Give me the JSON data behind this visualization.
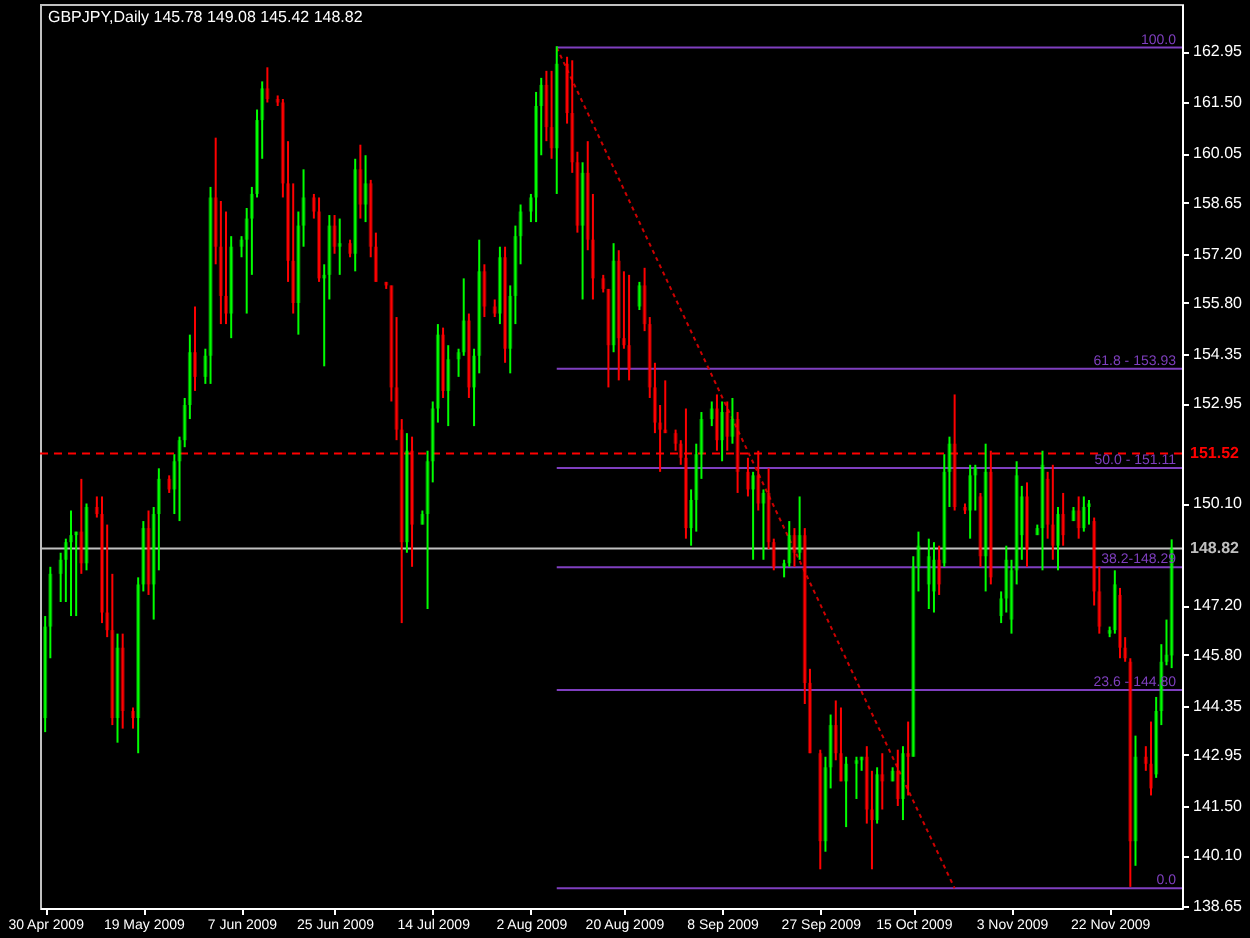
{
  "chart_data": {
    "type": "candlestick",
    "title": "GBPJPY,Daily  145.78 149.08 145.42 148.82",
    "x": [
      "2009-04-30",
      "2009-05-01",
      "2009-05-03",
      "2009-05-04",
      "2009-05-05",
      "2009-05-06",
      "2009-05-07",
      "2009-05-08",
      "2009-05-10",
      "2009-05-11",
      "2009-05-12",
      "2009-05-13",
      "2009-05-14",
      "2009-05-15",
      "2009-05-17",
      "2009-05-18",
      "2009-05-19",
      "2009-05-20",
      "2009-05-21",
      "2009-05-22",
      "2009-05-24",
      "2009-05-25",
      "2009-05-26",
      "2009-05-27",
      "2009-05-28",
      "2009-05-29",
      "2009-05-31",
      "2009-06-01",
      "2009-06-02",
      "2009-06-03",
      "2009-06-04",
      "2009-06-05",
      "2009-06-07",
      "2009-06-08",
      "2009-06-09",
      "2009-06-10",
      "2009-06-11",
      "2009-06-12",
      "2009-06-14",
      "2009-06-15",
      "2009-06-16",
      "2009-06-17",
      "2009-06-18",
      "2009-06-19",
      "2009-06-21",
      "2009-06-22",
      "2009-06-23",
      "2009-06-24",
      "2009-06-25",
      "2009-06-26",
      "2009-06-28",
      "2009-06-29",
      "2009-06-30",
      "2009-07-01",
      "2009-07-02",
      "2009-07-03",
      "2009-07-05",
      "2009-07-06",
      "2009-07-07",
      "2009-07-08",
      "2009-07-09",
      "2009-07-10",
      "2009-07-12",
      "2009-07-13",
      "2009-07-14",
      "2009-07-15",
      "2009-07-16",
      "2009-07-17",
      "2009-07-19",
      "2009-07-20",
      "2009-07-21",
      "2009-07-22",
      "2009-07-23",
      "2009-07-24",
      "2009-07-26",
      "2009-07-27",
      "2009-07-28",
      "2009-07-29",
      "2009-07-30",
      "2009-07-31",
      "2009-08-02",
      "2009-08-03",
      "2009-08-04",
      "2009-08-05",
      "2009-08-06",
      "2009-08-07",
      "2009-08-09",
      "2009-08-10",
      "2009-08-11",
      "2009-08-12",
      "2009-08-13",
      "2009-08-14",
      "2009-08-16",
      "2009-08-17",
      "2009-08-18",
      "2009-08-19",
      "2009-08-20",
      "2009-08-21",
      "2009-08-23",
      "2009-08-24",
      "2009-08-25",
      "2009-08-26",
      "2009-08-27",
      "2009-08-28",
      "2009-08-30",
      "2009-08-31",
      "2009-09-01",
      "2009-09-02",
      "2009-09-03",
      "2009-09-04",
      "2009-09-06",
      "2009-09-07",
      "2009-09-08",
      "2009-09-09",
      "2009-09-10",
      "2009-09-11",
      "2009-09-13",
      "2009-09-14",
      "2009-09-15",
      "2009-09-16",
      "2009-09-17",
      "2009-09-18",
      "2009-09-20",
      "2009-09-21",
      "2009-09-22",
      "2009-09-23",
      "2009-09-24",
      "2009-09-25",
      "2009-09-27",
      "2009-09-28",
      "2009-09-29",
      "2009-09-30",
      "2009-10-01",
      "2009-10-02",
      "2009-10-04",
      "2009-10-05",
      "2009-10-06",
      "2009-10-07",
      "2009-10-08",
      "2009-10-09",
      "2009-10-11",
      "2009-10-12",
      "2009-10-13",
      "2009-10-14",
      "2009-10-15",
      "2009-10-16",
      "2009-10-18",
      "2009-10-19",
      "2009-10-20",
      "2009-10-21",
      "2009-10-22",
      "2009-10-23",
      "2009-10-25",
      "2009-10-26",
      "2009-10-27",
      "2009-10-28",
      "2009-10-29",
      "2009-10-30",
      "2009-11-01",
      "2009-11-02",
      "2009-11-03",
      "2009-11-04",
      "2009-11-05",
      "2009-11-06",
      "2009-11-08",
      "2009-11-09",
      "2009-11-10",
      "2009-11-11",
      "2009-11-12",
      "2009-11-13",
      "2009-11-15",
      "2009-11-16",
      "2009-11-17",
      "2009-11-18",
      "2009-11-19",
      "2009-11-20",
      "2009-11-22",
      "2009-11-23",
      "2009-11-24",
      "2009-11-25",
      "2009-11-26",
      "2009-11-27",
      "2009-11-29",
      "2009-11-30",
      "2009-12-01",
      "2009-12-02",
      "2009-12-03",
      "2009-12-04"
    ],
    "ohlc": [
      [
        144.0,
        146.9,
        143.6,
        146.6
      ],
      [
        146.6,
        148.3,
        145.7,
        148.1
      ],
      [
        148.1,
        148.7,
        147.3,
        148.5
      ],
      [
        148.5,
        149.1,
        147.3,
        149.0
      ],
      [
        149.0,
        149.9,
        146.9,
        149.2
      ],
      [
        149.2,
        149.3,
        146.9,
        149.3
      ],
      [
        149.3,
        150.8,
        148.1,
        148.4
      ],
      [
        148.4,
        150.1,
        148.2,
        150.0
      ],
      [
        150.0,
        150.3,
        149.7,
        149.8
      ],
      [
        149.8,
        150.3,
        146.7,
        147.0
      ],
      [
        147.0,
        149.5,
        146.3,
        146.5
      ],
      [
        146.5,
        148.1,
        143.8,
        144.0
      ],
      [
        144.0,
        146.4,
        143.3,
        146.0
      ],
      [
        146.0,
        146.4,
        143.7,
        144.2
      ],
      [
        144.2,
        144.3,
        143.7,
        144.0
      ],
      [
        144.0,
        148.0,
        143.0,
        147.8
      ],
      [
        147.8,
        149.6,
        147.6,
        149.4
      ],
      [
        149.4,
        149.9,
        147.5,
        147.8
      ],
      [
        147.8,
        150.0,
        146.8,
        149.8
      ],
      [
        149.8,
        151.1,
        148.2,
        150.8
      ],
      [
        150.8,
        150.9,
        150.4,
        150.5
      ],
      [
        150.5,
        151.5,
        149.8,
        151.3
      ],
      [
        151.3,
        152.0,
        149.6,
        151.9
      ],
      [
        151.9,
        153.1,
        151.7,
        152.9
      ],
      [
        152.9,
        154.9,
        152.5,
        154.4
      ],
      [
        154.4,
        155.7,
        153.3,
        153.7
      ],
      [
        153.7,
        154.5,
        153.5,
        154.3
      ],
      [
        154.3,
        159.1,
        153.5,
        158.8
      ],
      [
        158.8,
        160.5,
        156.9,
        157.4
      ],
      [
        157.4,
        158.7,
        155.2,
        156.0
      ],
      [
        156.0,
        158.4,
        155.2,
        155.5
      ],
      [
        155.5,
        157.7,
        154.8,
        157.4
      ],
      [
        157.4,
        157.7,
        157.1,
        157.6
      ],
      [
        157.6,
        158.5,
        155.5,
        158.2
      ],
      [
        158.2,
        159.1,
        156.6,
        158.9
      ],
      [
        158.9,
        161.3,
        158.8,
        161.0
      ],
      [
        161.0,
        162.1,
        159.9,
        161.9
      ],
      [
        161.9,
        162.5,
        161.5,
        161.6
      ],
      [
        161.6,
        161.7,
        161.4,
        161.5
      ],
      [
        161.5,
        161.6,
        158.8,
        159.2
      ],
      [
        159.2,
        160.4,
        156.4,
        157.0
      ],
      [
        157.0,
        159.2,
        155.5,
        155.8
      ],
      [
        155.8,
        158.4,
        154.9,
        158.0
      ],
      [
        158.0,
        159.6,
        157.4,
        158.8
      ],
      [
        158.8,
        158.9,
        158.2,
        158.4
      ],
      [
        158.4,
        158.8,
        156.4,
        156.5
      ],
      [
        156.5,
        156.9,
        154.0,
        156.6
      ],
      [
        156.6,
        158.3,
        155.9,
        158.0
      ],
      [
        158.0,
        158.3,
        157.2,
        157.4
      ],
      [
        157.4,
        158.2,
        156.6,
        157.5
      ],
      [
        157.5,
        157.6,
        157.1,
        157.2
      ],
      [
        157.2,
        159.9,
        156.7,
        159.6
      ],
      [
        159.6,
        160.3,
        158.2,
        158.6
      ],
      [
        158.6,
        160.0,
        158.1,
        159.2
      ],
      [
        159.2,
        159.3,
        157.1,
        157.4
      ],
      [
        157.4,
        157.8,
        156.4,
        156.4
      ],
      [
        156.4,
        156.4,
        156.2,
        156.3
      ],
      [
        156.3,
        156.3,
        153.0,
        153.4
      ],
      [
        153.4,
        155.4,
        151.9,
        152.2
      ],
      [
        152.2,
        152.5,
        146.7,
        149.0
      ],
      [
        149.0,
        152.1,
        148.7,
        151.6
      ],
      [
        151.6,
        152.0,
        148.3,
        149.5
      ],
      [
        149.5,
        149.9,
        149.5,
        149.8
      ],
      [
        149.8,
        151.6,
        147.1,
        151.3
      ],
      [
        151.3,
        153.0,
        150.7,
        152.8
      ],
      [
        152.8,
        155.2,
        152.4,
        154.9
      ],
      [
        154.9,
        155.1,
        153.1,
        153.3
      ],
      [
        153.3,
        154.6,
        152.3,
        154.2
      ],
      [
        154.2,
        154.5,
        153.7,
        154.4
      ],
      [
        154.4,
        156.5,
        154.3,
        155.3
      ],
      [
        155.3,
        155.5,
        153.1,
        153.4
      ],
      [
        153.4,
        154.5,
        152.3,
        154.3
      ],
      [
        154.3,
        157.6,
        153.8,
        156.7
      ],
      [
        156.7,
        156.9,
        155.4,
        155.7
      ],
      [
        155.7,
        155.9,
        155.4,
        155.5
      ],
      [
        155.5,
        157.4,
        155.2,
        157.1
      ],
      [
        157.1,
        157.4,
        154.1,
        154.5
      ],
      [
        154.5,
        156.3,
        153.8,
        156.0
      ],
      [
        156.0,
        158.0,
        155.2,
        157.7
      ],
      [
        157.7,
        158.6,
        156.9,
        158.4
      ],
      [
        158.4,
        158.9,
        158.1,
        158.8
      ],
      [
        158.8,
        161.8,
        158.1,
        161.4
      ],
      [
        161.4,
        162.2,
        160.0,
        162.0
      ],
      [
        162.0,
        162.4,
        160.4,
        160.8
      ],
      [
        160.8,
        162.4,
        159.9,
        160.2
      ],
      [
        160.2,
        163.1,
        158.9,
        162.6
      ],
      [
        162.6,
        162.8,
        160.9,
        161.2
      ],
      [
        161.2,
        162.7,
        159.5,
        159.8
      ],
      [
        159.8,
        160.1,
        157.8,
        158.0
      ],
      [
        158.0,
        159.8,
        155.9,
        159.5
      ],
      [
        159.5,
        160.4,
        157.3,
        157.6
      ],
      [
        157.6,
        158.9,
        155.9,
        156.5
      ],
      [
        156.5,
        156.6,
        156.1,
        156.2
      ],
      [
        156.2,
        156.2,
        153.4,
        154.6
      ],
      [
        154.6,
        157.5,
        154.4,
        157.0
      ],
      [
        157.0,
        157.3,
        153.6,
        154.8
      ],
      [
        154.8,
        156.7,
        154.5,
        154.6
      ],
      [
        154.6,
        156.6,
        153.6,
        153.9
      ],
      [
        155.7,
        156.4,
        155.6,
        156.3
      ],
      [
        156.3,
        156.8,
        155.0,
        155.2
      ],
      [
        155.2,
        155.4,
        153.1,
        153.4
      ],
      [
        153.4,
        154.1,
        152.1,
        152.4
      ],
      [
        152.4,
        152.9,
        151.0,
        152.2
      ],
      [
        152.2,
        153.6,
        152.1,
        152.1
      ],
      [
        152.1,
        152.2,
        151.6,
        151.8
      ],
      [
        151.8,
        151.9,
        151.2,
        151.4
      ],
      [
        151.4,
        152.8,
        149.1,
        149.4
      ],
      [
        149.4,
        150.5,
        148.9,
        150.2
      ],
      [
        150.2,
        151.8,
        149.3,
        151.5
      ],
      [
        151.5,
        152.7,
        150.8,
        152.5
      ],
      [
        152.5,
        153.0,
        152.3,
        152.8
      ],
      [
        152.8,
        153.2,
        151.6,
        151.9
      ],
      [
        151.9,
        153.0,
        151.3,
        152.7
      ],
      [
        152.7,
        153.0,
        151.6,
        152.0
      ],
      [
        152.0,
        153.1,
        151.8,
        152.5
      ],
      [
        152.5,
        152.7,
        150.4,
        151.0
      ],
      [
        151.0,
        151.4,
        150.3,
        150.5
      ],
      [
        150.5,
        151.0,
        148.5,
        150.9
      ],
      [
        150.9,
        151.6,
        149.9,
        150.1
      ],
      [
        150.1,
        150.5,
        148.5,
        150.4
      ],
      [
        150.4,
        151.1,
        148.8,
        149.0
      ],
      [
        149.0,
        149.1,
        148.2,
        148.3
      ],
      [
        148.3,
        148.5,
        148.0,
        148.4
      ],
      [
        148.4,
        149.6,
        148.3,
        149.2
      ],
      [
        149.2,
        149.4,
        148.3,
        148.7
      ],
      [
        148.7,
        150.3,
        148.5,
        149.2
      ],
      [
        149.2,
        149.4,
        144.4,
        145.0
      ],
      [
        145.0,
        145.4,
        143.0,
        143.0
      ],
      [
        143.0,
        143.1,
        139.7,
        140.5
      ],
      [
        140.5,
        142.9,
        140.2,
        142.6
      ],
      [
        142.6,
        144.1,
        142.0,
        143.8
      ],
      [
        143.8,
        144.5,
        142.8,
        143.0
      ],
      [
        143.0,
        144.3,
        142.2,
        142.2
      ],
      [
        142.2,
        142.9,
        140.9,
        142.7
      ],
      [
        142.7,
        142.9,
        141.7,
        142.8
      ],
      [
        142.8,
        142.9,
        142.5,
        142.9
      ],
      [
        142.9,
        143.2,
        141.0,
        141.4
      ],
      [
        141.4,
        142.5,
        139.7,
        141.1
      ],
      [
        141.1,
        142.6,
        141.0,
        142.4
      ],
      [
        142.4,
        143.0,
        141.4,
        142.2
      ],
      [
        142.2,
        142.6,
        142.2,
        142.5
      ],
      [
        142.5,
        143.1,
        141.5,
        141.7
      ],
      [
        141.7,
        143.2,
        141.1,
        143.0
      ],
      [
        143.0,
        143.9,
        141.8,
        142.9
      ],
      [
        142.9,
        148.6,
        142.9,
        148.3
      ],
      [
        148.3,
        149.3,
        147.6,
        148.9
      ],
      [
        147.8,
        149.1,
        147.1,
        148.6
      ],
      [
        147.6,
        149.0,
        147.0,
        148.5
      ],
      [
        148.5,
        148.9,
        147.5,
        147.8
      ],
      [
        148.4,
        151.5,
        148.3,
        151.0
      ],
      [
        151.0,
        152.0,
        150.0,
        151.8
      ],
      [
        151.8,
        153.2,
        149.9,
        150.0
      ],
      [
        150.0,
        150.1,
        149.8,
        149.9
      ],
      [
        149.9,
        151.2,
        149.1,
        150.9
      ],
      [
        150.9,
        151.2,
        149.9,
        151.1
      ],
      [
        150.3,
        150.4,
        148.3,
        148.6
      ],
      [
        148.6,
        151.8,
        147.6,
        151.0
      ],
      [
        151.0,
        151.6,
        147.8,
        148.0
      ],
      [
        146.9,
        147.6,
        146.7,
        147.4
      ],
      [
        147.4,
        148.9,
        147.0,
        148.5
      ],
      [
        146.8,
        148.5,
        146.4,
        148.2
      ],
      [
        148.2,
        151.3,
        147.8,
        150.9
      ],
      [
        149.2,
        150.6,
        148.5,
        150.3
      ],
      [
        150.3,
        150.7,
        148.3,
        148.8
      ],
      [
        149.2,
        149.5,
        149.2,
        149.4
      ],
      [
        149.4,
        151.6,
        148.2,
        151.2
      ],
      [
        150.8,
        151.0,
        149.1,
        149.5
      ],
      [
        149.5,
        151.2,
        148.5,
        148.9
      ],
      [
        148.9,
        150.0,
        148.2,
        149.8
      ],
      [
        149.8,
        150.4,
        148.9,
        149.2
      ],
      [
        149.6,
        150.0,
        149.6,
        149.9
      ],
      [
        149.9,
        150.3,
        149.1,
        149.4
      ],
      [
        149.4,
        150.3,
        149.3,
        150.0
      ],
      [
        150.0,
        150.2,
        149.5,
        150.1
      ],
      [
        149.6,
        149.7,
        147.2,
        147.6
      ],
      [
        147.6,
        148.3,
        146.4,
        146.6
      ],
      [
        146.4,
        146.6,
        146.3,
        146.5
      ],
      [
        146.5,
        148.2,
        146.4,
        147.8
      ],
      [
        147.5,
        147.7,
        145.7,
        146.0
      ],
      [
        146.0,
        146.3,
        145.6,
        145.7
      ],
      [
        145.6,
        145.7,
        139.2,
        140.5
      ],
      [
        140.5,
        143.5,
        139.8,
        142.9
      ],
      [
        142.9,
        143.2,
        142.5,
        142.7
      ],
      [
        142.7,
        143.9,
        141.8,
        142.0
      ],
      [
        142.4,
        144.6,
        142.3,
        144.2
      ],
      [
        144.2,
        146.1,
        143.8,
        145.6
      ],
      [
        145.6,
        146.8,
        145.5,
        145.8
      ],
      [
        145.78,
        149.08,
        145.42,
        148.82
      ]
    ],
    "colors": [
      "#00ff00",
      "#00ff00",
      "#00ff00",
      "#00ff00",
      "#00ff00",
      "#00ff00",
      "#ff0000",
      "#00ff00",
      "#ff0000",
      "#ff0000",
      "#ff0000",
      "#ff0000",
      "#00ff00",
      "#ff0000",
      "#ff0000",
      "#00ff00",
      "#00ff00",
      "#ff0000",
      "#00ff00",
      "#00ff00",
      "#ff0000",
      "#00ff00",
      "#00ff00",
      "#00ff00",
      "#00ff00",
      "#ff0000",
      "#00ff00",
      "#00ff00",
      "#ff0000",
      "#ff0000",
      "#ff0000",
      "#00ff00",
      "#00ff00",
      "#00ff00",
      "#00ff00",
      "#00ff00",
      "#00ff00",
      "#ff0000",
      "#ff0000",
      "#ff0000",
      "#ff0000",
      "#ff0000",
      "#00ff00",
      "#00ff00",
      "#ff0000",
      "#ff0000",
      "#00ff00",
      "#00ff00",
      "#ff0000",
      "#00ff00",
      "#ff0000",
      "#00ff00",
      "#ff0000",
      "#00ff00",
      "#ff0000",
      "#ff0000",
      "#ff0000",
      "#ff0000",
      "#ff0000",
      "#ff0000",
      "#00ff00",
      "#ff0000",
      "#00ff00",
      "#00ff00",
      "#00ff00",
      "#00ff00",
      "#ff0000",
      "#00ff00",
      "#00ff00",
      "#00ff00",
      "#ff0000",
      "#00ff00",
      "#00ff00",
      "#ff0000",
      "#ff0000",
      "#00ff00",
      "#ff0000",
      "#00ff00",
      "#00ff00",
      "#00ff00",
      "#00ff00",
      "#00ff00",
      "#00ff00",
      "#ff0000",
      "#ff0000",
      "#00ff00",
      "#ff0000",
      "#ff0000",
      "#ff0000",
      "#00ff00",
      "#ff0000",
      "#ff0000",
      "#ff0000",
      "#ff0000",
      "#00ff00",
      "#ff0000",
      "#ff0000",
      "#ff0000",
      "#00ff00",
      "#ff0000",
      "#ff0000",
      "#ff0000",
      "#ff0000",
      "#ff0000",
      "#ff0000",
      "#ff0000",
      "#ff0000",
      "#00ff00",
      "#00ff00",
      "#00ff00",
      "#00ff00",
      "#ff0000",
      "#00ff00",
      "#ff0000",
      "#00ff00",
      "#ff0000",
      "#ff0000",
      "#00ff00",
      "#ff0000",
      "#00ff00",
      "#ff0000",
      "#ff0000",
      "#00ff00",
      "#00ff00",
      "#ff0000",
      "#00ff00",
      "#ff0000",
      "#ff0000",
      "#ff0000",
      "#00ff00",
      "#00ff00",
      "#ff0000",
      "#ff0000",
      "#00ff00",
      "#00ff00",
      "#00ff00",
      "#ff0000",
      "#ff0000",
      "#00ff00",
      "#ff0000",
      "#00ff00",
      "#ff0000",
      "#00ff00",
      "#ff0000",
      "#00ff00",
      "#00ff00",
      "#00ff00",
      "#00ff00",
      "#ff0000",
      "#00ff00",
      "#00ff00",
      "#ff0000",
      "#ff0000",
      "#00ff00",
      "#00ff00",
      "#ff0000",
      "#00ff00",
      "#ff0000",
      "#00ff00",
      "#00ff00",
      "#00ff00",
      "#00ff00",
      "#00ff00",
      "#ff0000",
      "#00ff00",
      "#00ff00",
      "#ff0000",
      "#ff0000",
      "#00ff00",
      "#ff0000",
      "#00ff00",
      "#ff0000",
      "#00ff00",
      "#00ff00",
      "#ff0000",
      "#ff0000",
      "#00ff00",
      "#00ff00",
      "#ff0000",
      "#ff0000",
      "#ff0000",
      "#00ff00",
      "#ff0000",
      "#ff0000",
      "#00ff00",
      "#00ff00",
      "#00ff00",
      "#00ff00"
    ],
    "series": [
      {
        "type": "line",
        "name": "100.0",
        "x": [
          "2009-08-07",
          "2009-12-06"
        ],
        "values": [
          163.06,
          163.06
        ],
        "color": "#7f3fbf"
      },
      {
        "type": "line",
        "name": "61.8 - 153.93",
        "x": [
          "2009-08-07",
          "2009-12-06"
        ],
        "values": [
          153.93,
          153.93
        ],
        "color": "#7f3fbf"
      },
      {
        "type": "line",
        "name": "50.0 - 151.11",
        "x": [
          "2009-08-07",
          "2009-12-06"
        ],
        "values": [
          151.11,
          151.11
        ],
        "color": "#7f3fbf"
      },
      {
        "type": "line",
        "name": "38.2-148.29",
        "x": [
          "2009-08-07",
          "2009-12-06"
        ],
        "values": [
          148.29,
          148.29
        ],
        "color": "#7f3fbf"
      },
      {
        "type": "line",
        "name": "23.6 - 144.80",
        "x": [
          "2009-08-07",
          "2009-12-06"
        ],
        "values": [
          144.8,
          144.8
        ],
        "color": "#7f3fbf"
      },
      {
        "type": "line",
        "name": "0.0",
        "x": [
          "2009-08-07",
          "2009-12-06"
        ],
        "values": [
          139.16,
          139.16
        ],
        "color": "#7f3fbf"
      },
      {
        "type": "line",
        "x": [
          "2009-08-07",
          "2009-10-23"
        ],
        "values": [
          163.06,
          139.16
        ],
        "color": "#cc0000",
        "line_style": "dotted"
      }
    ],
    "ref_lines": [
      {
        "axis": "y",
        "value": 151.52,
        "label": "151.52",
        "color": "#ff0000",
        "line_style": "dashed"
      },
      {
        "axis": "y",
        "value": 148.82,
        "label": "148.82",
        "color": "#c0c0c0"
      }
    ],
    "xlim": [
      "2009-04-29",
      "2009-12-06"
    ],
    "xticks": [
      {
        "value": "2009-04-30",
        "label": "30 Apr 2009"
      },
      {
        "value": "2009-05-19",
        "label": "19 May 2009"
      },
      {
        "value": "2009-06-07",
        "label": "7 Jun 2009"
      },
      {
        "value": "2009-06-25",
        "label": "25 Jun 2009"
      },
      {
        "value": "2009-07-14",
        "label": "14 Jul 2009"
      },
      {
        "value": "2009-08-02",
        "label": "2 Aug 2009"
      },
      {
        "value": "2009-08-20",
        "label": "20 Aug 2009"
      },
      {
        "value": "2009-09-08",
        "label": "8 Sep 2009"
      },
      {
        "value": "2009-09-27",
        "label": "27 Sep 2009"
      },
      {
        "value": "2009-10-15",
        "label": "15 Oct 2009"
      },
      {
        "value": "2009-11-03",
        "label": "3 Nov 2009"
      },
      {
        "value": "2009-11-22",
        "label": "22 Nov 2009"
      }
    ],
    "ylim": [
      138.6,
      164.3
    ],
    "yticks": [
      162.95,
      {
        "value": 161.5,
        "label": "161.50"
      },
      160.05,
      158.65,
      {
        "value": 157.2,
        "label": "157.20"
      },
      {
        "value": 155.8,
        "label": "155.80"
      },
      154.35,
      152.95,
      {
        "value": 150.1,
        "label": "150.10"
      },
      {
        "value": 147.2,
        "label": "147.20"
      },
      {
        "value": 145.8,
        "label": "145.80"
      },
      144.35,
      142.95,
      {
        "value": 141.5,
        "label": "141.50"
      },
      {
        "value": 140.1,
        "label": "140.10"
      },
      138.65
    ]
  }
}
